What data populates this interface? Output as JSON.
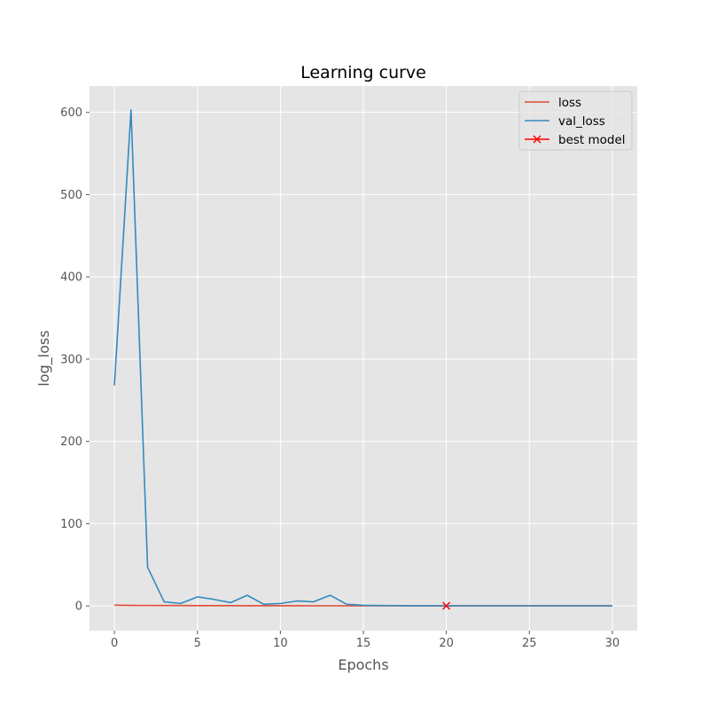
{
  "chart_data": {
    "type": "line",
    "title": "Learning curve",
    "xlabel": "Epochs",
    "ylabel": "log_loss",
    "xlim": [
      -1.5,
      31.5
    ],
    "ylim": [
      -30,
      632
    ],
    "xticks": [
      0,
      5,
      10,
      15,
      20,
      25,
      30
    ],
    "yticks": [
      0,
      100,
      200,
      300,
      400,
      500,
      600
    ],
    "grid": true,
    "legend_position": "top-right",
    "colors": {
      "background": "#e5e5e5",
      "grid": "#ffffff",
      "loss": "#e24a33",
      "val_loss": "#348abd",
      "best_model": "#ff0000",
      "text": "#555555"
    },
    "series": [
      {
        "name": "loss",
        "x": [
          0,
          1,
          2,
          3,
          4,
          5,
          6,
          7,
          8,
          9,
          10,
          11,
          12,
          13,
          14,
          15,
          16,
          17,
          18,
          19,
          20,
          21,
          22,
          23,
          24,
          25,
          26,
          27,
          28,
          29,
          30
        ],
        "values": [
          0.9,
          0.7,
          0.6,
          0.5,
          0.5,
          0.4,
          0.4,
          0.4,
          0.3,
          0.3,
          0.3,
          0.3,
          0.2,
          0.2,
          0.2,
          0.2,
          0.2,
          0.2,
          0.1,
          0.1,
          0.1,
          0.1,
          0.1,
          0.1,
          0.1,
          0.1,
          0.1,
          0.1,
          0.1,
          0.1,
          0.1
        ]
      },
      {
        "name": "val_loss",
        "x": [
          0,
          1,
          2,
          3,
          4,
          5,
          6,
          7,
          8,
          9,
          10,
          11,
          12,
          13,
          14,
          15,
          16,
          17,
          18,
          19,
          20,
          21,
          22,
          23,
          24,
          25,
          26,
          27,
          28,
          29,
          30
        ],
        "values": [
          268,
          603,
          47,
          5,
          3,
          11,
          8,
          4,
          13,
          2,
          3,
          6,
          5,
          13,
          2,
          0.8,
          0.5,
          0.4,
          0.3,
          0.25,
          0.2,
          0.2,
          0.2,
          0.2,
          0.2,
          0.2,
          0.2,
          0.2,
          0.2,
          0.2,
          0.2
        ]
      },
      {
        "name": "best model",
        "x": [
          20
        ],
        "values": [
          0.2
        ],
        "marker": "x"
      }
    ]
  }
}
